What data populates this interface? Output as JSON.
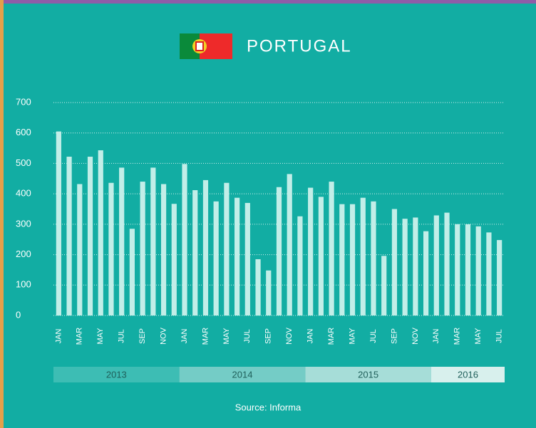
{
  "chart_data": {
    "type": "bar",
    "title": "PORTUGAL",
    "categories": [
      "JAN",
      null,
      "MAR",
      null,
      "MAY",
      null,
      "JUL",
      null,
      "SEP",
      null,
      "NOV",
      null,
      "JAN",
      null,
      "MAR",
      null,
      "MAY",
      null,
      "JUL",
      null,
      "SEP",
      null,
      "NOV",
      null,
      "JAN",
      null,
      "MAR",
      null,
      "MAY",
      null,
      "JUL",
      null,
      "SEP",
      null,
      "NOV",
      null,
      "JAN",
      null,
      "MAR",
      null,
      "MAY",
      null,
      "JUL"
    ],
    "values": [
      605,
      522,
      432,
      522,
      543,
      436,
      486,
      285,
      440,
      486,
      432,
      367,
      498,
      412,
      445,
      375,
      436,
      387,
      370,
      185,
      148,
      422,
      465,
      326,
      420,
      390,
      440,
      366,
      366,
      387,
      375,
      196,
      350,
      318,
      322,
      277,
      329,
      338,
      300,
      300,
      293,
      273,
      248
    ],
    "color": "#c2eee8",
    "ylim": [
      0,
      700
    ],
    "yticks": [
      0,
      100,
      200,
      300,
      400,
      500,
      600,
      700
    ],
    "grid": true,
    "years": [
      {
        "label": "2013",
        "color": "#3dbdb4"
      },
      {
        "label": "2014",
        "color": "#74ccc6"
      },
      {
        "label": "2015",
        "color": "#a6ddd8"
      },
      {
        "label": "2016",
        "color": "#d8f0ed"
      }
    ],
    "source": "Source: Informa"
  }
}
